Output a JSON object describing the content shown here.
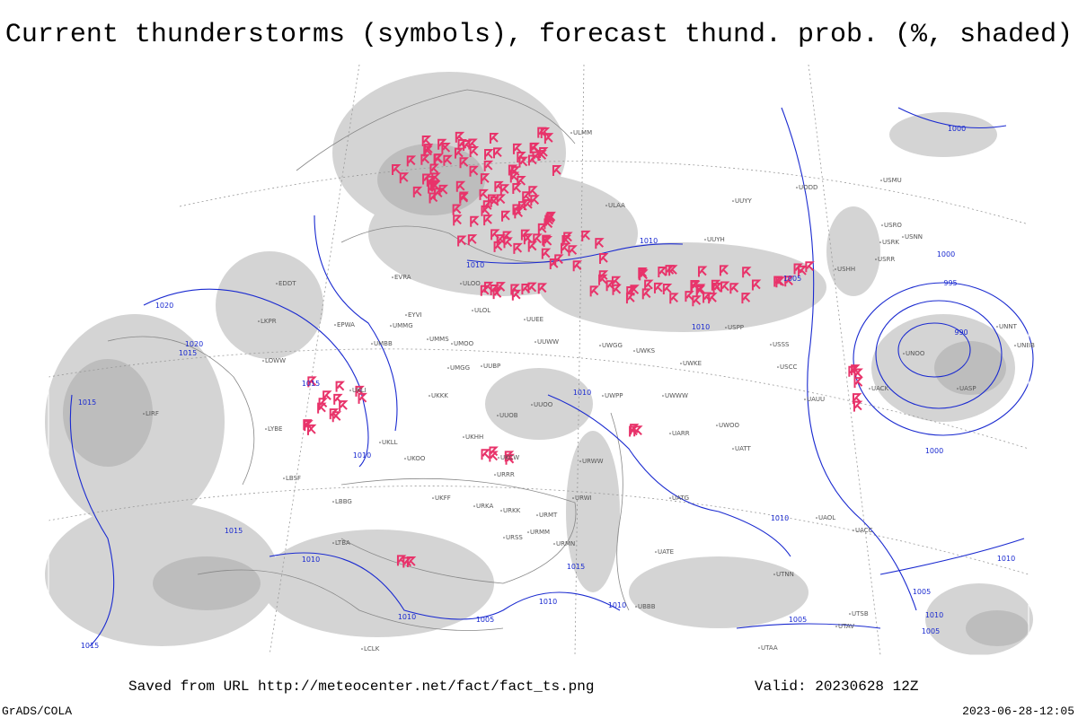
{
  "header": {
    "title": "Current thunderstorms (symbols), forecast thund. prob. (%, shaded)"
  },
  "footer": {
    "source": "Saved from URL http://meteocenter.net/fact/fact_ts.png",
    "valid": "Valid: 20230628 12Z",
    "software": "GrADS/COLA",
    "timestamp": "2023-06-28-12:05"
  },
  "map": {
    "isobar_labels": [
      "1020",
      "1020",
      "1015",
      "1015",
      "1015",
      "1010",
      "1015",
      "1010",
      "1015",
      "1010",
      "1005",
      "1010",
      "1010",
      "1010",
      "1005",
      "1010",
      "1010",
      "1005",
      "1000",
      "995",
      "990",
      "1000",
      "1000",
      "1015",
      "1010",
      "1010",
      "1010",
      "1005",
      "1010",
      "1005"
    ],
    "stations": [
      "ULAA",
      "UUYY",
      "ULMM",
      "UODD",
      "USMU",
      "UUYH",
      "USHH",
      "USRO",
      "USRK",
      "USNN",
      "USRR",
      "UNNT",
      "UNBB",
      "UNOO",
      "UASP",
      "UACK",
      "UAUU",
      "USSS",
      "USCC",
      "USPP",
      "UWKE",
      "UWKS",
      "UWGG",
      "UWPP",
      "UWWW",
      "UWOO",
      "UARR",
      "UATT",
      "UUOB",
      "UUOO",
      "UKHH",
      "UKCW",
      "URRR",
      "URWW",
      "URWI",
      "URKA",
      "URKK",
      "URMT",
      "URMM",
      "URMN",
      "URSS",
      "UATG",
      "UATE",
      "UAOL",
      "UACC",
      "UTNN",
      "UBBB",
      "UTAA",
      "UTSB",
      "UTAV",
      "UKFF",
      "UKOO",
      "UKLL",
      "UKLI",
      "UMBB",
      "UMMG",
      "EVRA",
      "EYVI",
      "EPWA",
      "LKPR",
      "EDDT",
      "LOWW",
      "LYBE",
      "LBSF",
      "LBBG",
      "LTBA",
      "LIRF",
      "LCLK",
      "ULOO",
      "ULOL",
      "UUEE",
      "UUWW",
      "UMMS",
      "UMOO",
      "UUBP",
      "UMGG",
      "UKKK"
    ]
  }
}
